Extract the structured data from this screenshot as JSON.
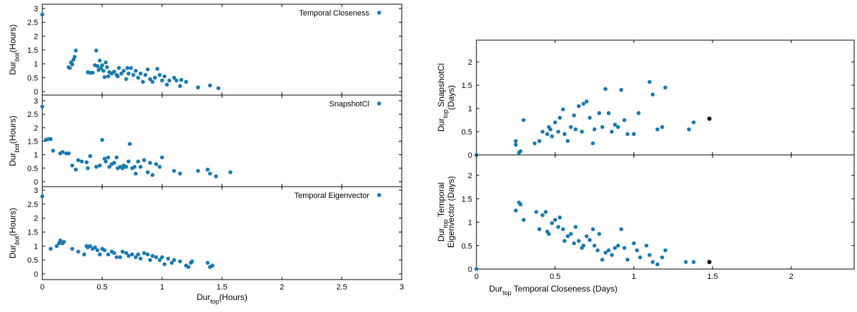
{
  "colors": {
    "series": "#1a7aaf",
    "highlight": "#000000",
    "axis": "#000000"
  },
  "left_figure": {
    "xlabel": {
      "main": "Dur",
      "sub": "top",
      "suffix": "(Hours)"
    },
    "x_ticks": [
      "0",
      "0.5",
      "1",
      "1.5",
      "2",
      "2.5",
      "3"
    ],
    "y_ticks": [
      "0",
      "0.5",
      "1",
      "1.5",
      "2",
      "2.5",
      "3"
    ]
  },
  "right_figure": {
    "xlabel": {
      "main": "Dur",
      "sub": "top",
      "suffix": " Temporal Closeness (Days)"
    },
    "x_ticks": [
      "0",
      "0.5",
      "1",
      "1.5",
      "2"
    ],
    "y_ticks": [
      "0",
      "0.5",
      "1",
      "1.5",
      "2"
    ]
  },
  "chart_data": [
    {
      "type": "scatter",
      "panel": "left-top",
      "legend": "Temporal Closeness",
      "legend_position": "top-right",
      "ylabel": {
        "main": "Dur",
        "sub": "bot",
        "suffix": "(Hours)"
      },
      "xlim": [
        0,
        3
      ],
      "ylim": [
        -0.1,
        3.1
      ],
      "points": [
        [
          0,
          2.78
        ],
        [
          0.22,
          0.88
        ],
        [
          0.23,
          0.85
        ],
        [
          0.24,
          1.05
        ],
        [
          0.25,
          0.98
        ],
        [
          0.26,
          1.15
        ],
        [
          0.27,
          1.25
        ],
        [
          0.28,
          1.48
        ],
        [
          0.38,
          0.7
        ],
        [
          0.4,
          0.68
        ],
        [
          0.42,
          0.68
        ],
        [
          0.44,
          0.95
        ],
        [
          0.45,
          1.48
        ],
        [
          0.46,
          0.92
        ],
        [
          0.47,
          0.78
        ],
        [
          0.48,
          1.12
        ],
        [
          0.49,
          0.85
        ],
        [
          0.5,
          0.95
        ],
        [
          0.51,
          0.75
        ],
        [
          0.52,
          0.52
        ],
        [
          0.53,
          1.05
        ],
        [
          0.54,
          0.88
        ],
        [
          0.55,
          0.55
        ],
        [
          0.56,
          0.7
        ],
        [
          0.58,
          0.65
        ],
        [
          0.6,
          0.72
        ],
        [
          0.62,
          0.6
        ],
        [
          0.63,
          0.55
        ],
        [
          0.64,
          0.85
        ],
        [
          0.66,
          0.65
        ],
        [
          0.68,
          0.75
        ],
        [
          0.7,
          0.45
        ],
        [
          0.71,
          0.85
        ],
        [
          0.72,
          0.65
        ],
        [
          0.74,
          0.85
        ],
        [
          0.76,
          0.6
        ],
        [
          0.78,
          0.75
        ],
        [
          0.8,
          0.5
        ],
        [
          0.82,
          0.65
        ],
        [
          0.84,
          0.35
        ],
        [
          0.86,
          0.6
        ],
        [
          0.88,
          0.8
        ],
        [
          0.9,
          0.45
        ],
        [
          0.92,
          0.35
        ],
        [
          0.94,
          0.5
        ],
        [
          0.96,
          0.82
        ],
        [
          0.98,
          0.6
        ],
        [
          1.0,
          0.4
        ],
        [
          1.02,
          0.55
        ],
        [
          1.04,
          0.25
        ],
        [
          1.06,
          0.4
        ],
        [
          1.1,
          0.5
        ],
        [
          1.12,
          0.4
        ],
        [
          1.15,
          0.2
        ],
        [
          1.16,
          0.42
        ],
        [
          1.2,
          0.35
        ],
        [
          1.3,
          0.15
        ],
        [
          1.4,
          0.22
        ],
        [
          1.47,
          0.12
        ]
      ]
    },
    {
      "type": "scatter",
      "panel": "left-middle",
      "legend": "SnapshotCl",
      "legend_position": "top-right",
      "ylabel": {
        "main": "Dur",
        "sub": "bot",
        "suffix": "(Hours)"
      },
      "xlim": [
        0,
        3
      ],
      "ylim": [
        -0.1,
        3.1
      ],
      "points": [
        [
          0,
          2.78
        ],
        [
          0.03,
          1.55
        ],
        [
          0.05,
          1.58
        ],
        [
          0.07,
          1.58
        ],
        [
          0.09,
          1.15
        ],
        [
          0.15,
          1.05
        ],
        [
          0.17,
          1.1
        ],
        [
          0.2,
          1.05
        ],
        [
          0.22,
          1.05
        ],
        [
          0.25,
          0.6
        ],
        [
          0.28,
          0.45
        ],
        [
          0.3,
          0.8
        ],
        [
          0.33,
          0.75
        ],
        [
          0.37,
          0.72
        ],
        [
          0.38,
          0.5
        ],
        [
          0.4,
          0.95
        ],
        [
          0.45,
          0.55
        ],
        [
          0.48,
          0.6
        ],
        [
          0.5,
          1.55
        ],
        [
          0.52,
          0.85
        ],
        [
          0.53,
          0.75
        ],
        [
          0.55,
          0.9
        ],
        [
          0.56,
          0.55
        ],
        [
          0.58,
          0.65
        ],
        [
          0.6,
          0.7
        ],
        [
          0.62,
          0.9
        ],
        [
          0.63,
          0.5
        ],
        [
          0.65,
          0.55
        ],
        [
          0.67,
          0.5
        ],
        [
          0.68,
          0.6
        ],
        [
          0.7,
          0.55
        ],
        [
          0.72,
          0.75
        ],
        [
          0.73,
          1.4
        ],
        [
          0.75,
          0.5
        ],
        [
          0.77,
          0.55
        ],
        [
          0.78,
          0.3
        ],
        [
          0.8,
          0.75
        ],
        [
          0.82,
          0.55
        ],
        [
          0.85,
          0.8
        ],
        [
          0.88,
          0.35
        ],
        [
          0.9,
          0.7
        ],
        [
          0.92,
          0.25
        ],
        [
          0.95,
          0.65
        ],
        [
          0.98,
          0.55
        ],
        [
          1.0,
          0.9
        ],
        [
          1.1,
          0.4
        ],
        [
          1.15,
          0.3
        ],
        [
          1.3,
          0.4
        ],
        [
          1.38,
          0.45
        ],
        [
          1.4,
          0.3
        ],
        [
          1.45,
          0.2
        ],
        [
          1.57,
          0.35
        ]
      ]
    },
    {
      "type": "scatter",
      "panel": "left-bottom",
      "legend": "Temporal Eigenvector",
      "legend_position": "top-right",
      "ylabel": {
        "main": "Dur",
        "sub": "bot",
        "suffix": "(Hours)"
      },
      "xlim": [
        0,
        3
      ],
      "ylim": [
        -0.1,
        3.1
      ],
      "points": [
        [
          0,
          2.78
        ],
        [
          0.07,
          0.9
        ],
        [
          0.12,
          1.0
        ],
        [
          0.14,
          1.1
        ],
        [
          0.15,
          1.2
        ],
        [
          0.17,
          1.1
        ],
        [
          0.18,
          1.15
        ],
        [
          0.25,
          0.9
        ],
        [
          0.3,
          0.8
        ],
        [
          0.35,
          0.7
        ],
        [
          0.37,
          1.0
        ],
        [
          0.38,
          0.95
        ],
        [
          0.4,
          1.0
        ],
        [
          0.42,
          0.9
        ],
        [
          0.44,
          0.95
        ],
        [
          0.46,
          0.85
        ],
        [
          0.48,
          0.7
        ],
        [
          0.5,
          0.9
        ],
        [
          0.52,
          0.85
        ],
        [
          0.55,
          0.7
        ],
        [
          0.58,
          0.8
        ],
        [
          0.6,
          0.75
        ],
        [
          0.62,
          0.6
        ],
        [
          0.65,
          0.6
        ],
        [
          0.67,
          0.8
        ],
        [
          0.7,
          0.75
        ],
        [
          0.72,
          0.65
        ],
        [
          0.75,
          0.7
        ],
        [
          0.78,
          0.6
        ],
        [
          0.8,
          0.7
        ],
        [
          0.82,
          0.55
        ],
        [
          0.85,
          0.75
        ],
        [
          0.88,
          0.7
        ],
        [
          0.9,
          0.5
        ],
        [
          0.92,
          0.65
        ],
        [
          0.95,
          0.6
        ],
        [
          0.98,
          0.5
        ],
        [
          1.0,
          0.6
        ],
        [
          1.02,
          0.35
        ],
        [
          1.05,
          0.55
        ],
        [
          1.08,
          0.4
        ],
        [
          1.1,
          0.5
        ],
        [
          1.15,
          0.45
        ],
        [
          1.2,
          0.3
        ],
        [
          1.22,
          0.25
        ],
        [
          1.24,
          0.4
        ],
        [
          1.25,
          0.45
        ],
        [
          1.38,
          0.4
        ],
        [
          1.4,
          0.25
        ],
        [
          1.42,
          0.3
        ]
      ]
    },
    {
      "type": "scatter",
      "panel": "right-top",
      "ylabel": {
        "main": "Dur",
        "sub": "top",
        "suffix": " SnapshotCl",
        "line2": "(Days)"
      },
      "xlim": [
        0,
        2.4
      ],
      "ylim": [
        0,
        2.4
      ],
      "points": [
        [
          0,
          0
        ],
        [
          0.25,
          0.22
        ],
        [
          0.25,
          0.3
        ],
        [
          0.27,
          0.05
        ],
        [
          0.28,
          0.08
        ],
        [
          0.3,
          0.75
        ],
        [
          0.37,
          0.25
        ],
        [
          0.4,
          0.3
        ],
        [
          0.42,
          0.5
        ],
        [
          0.45,
          0.45
        ],
        [
          0.46,
          0.6
        ],
        [
          0.47,
          0.55
        ],
        [
          0.48,
          0.4
        ],
        [
          0.5,
          0.7
        ],
        [
          0.52,
          0.5
        ],
        [
          0.53,
          0.8
        ],
        [
          0.55,
          0.98
        ],
        [
          0.56,
          0.45
        ],
        [
          0.58,
          0.3
        ],
        [
          0.6,
          0.6
        ],
        [
          0.62,
          0.85
        ],
        [
          0.63,
          0.55
        ],
        [
          0.65,
          1.05
        ],
        [
          0.67,
          0.5
        ],
        [
          0.68,
          1.1
        ],
        [
          0.7,
          1.15
        ],
        [
          0.72,
          0.8
        ],
        [
          0.74,
          0.25
        ],
        [
          0.75,
          0.55
        ],
        [
          0.78,
          0.9
        ],
        [
          0.8,
          0.6
        ],
        [
          0.82,
          1.42
        ],
        [
          0.84,
          0.9
        ],
        [
          0.86,
          0.5
        ],
        [
          0.88,
          0.65
        ],
        [
          0.9,
          0.6
        ],
        [
          0.92,
          1.4
        ],
        [
          0.94,
          0.75
        ],
        [
          0.96,
          0.45
        ],
        [
          1.0,
          0.45
        ],
        [
          1.03,
          0.9
        ],
        [
          1.1,
          1.57
        ],
        [
          1.12,
          1.3
        ],
        [
          1.15,
          0.55
        ],
        [
          1.18,
          0.6
        ],
        [
          1.2,
          1.45
        ],
        [
          1.35,
          0.55
        ],
        [
          1.38,
          0.7
        ]
      ],
      "highlight_point": [
        1.48,
        0.78
      ]
    },
    {
      "type": "scatter",
      "panel": "right-bottom",
      "ylabel": {
        "main": "Dur",
        "sub": "top",
        "suffix": " Temporal",
        "line2": "Eigenvector (Days)"
      },
      "xlim": [
        0,
        2.4
      ],
      "ylim": [
        0,
        2.4
      ],
      "points": [
        [
          0,
          0
        ],
        [
          0.25,
          1.25
        ],
        [
          0.27,
          1.42
        ],
        [
          0.28,
          1.38
        ],
        [
          0.3,
          1.05
        ],
        [
          0.38,
          1.22
        ],
        [
          0.4,
          0.85
        ],
        [
          0.42,
          1.15
        ],
        [
          0.44,
          1.22
        ],
        [
          0.45,
          0.8
        ],
        [
          0.46,
          0.75
        ],
        [
          0.48,
          0.98
        ],
        [
          0.5,
          1.05
        ],
        [
          0.52,
          0.9
        ],
        [
          0.53,
          1.1
        ],
        [
          0.55,
          0.85
        ],
        [
          0.56,
          0.6
        ],
        [
          0.58,
          0.7
        ],
        [
          0.6,
          0.75
        ],
        [
          0.62,
          0.55
        ],
        [
          0.63,
          0.9
        ],
        [
          0.65,
          0.6
        ],
        [
          0.67,
          0.45
        ],
        [
          0.68,
          0.5
        ],
        [
          0.7,
          0.7
        ],
        [
          0.72,
          0.62
        ],
        [
          0.74,
          0.85
        ],
        [
          0.75,
          0.5
        ],
        [
          0.77,
          0.4
        ],
        [
          0.78,
          0.75
        ],
        [
          0.8,
          0.2
        ],
        [
          0.82,
          0.35
        ],
        [
          0.84,
          0.4
        ],
        [
          0.86,
          0.3
        ],
        [
          0.88,
          0.45
        ],
        [
          0.9,
          0.5
        ],
        [
          0.92,
          0.85
        ],
        [
          0.94,
          0.45
        ],
        [
          0.96,
          0.2
        ],
        [
          1.0,
          0.55
        ],
        [
          1.02,
          0.4
        ],
        [
          1.04,
          0.25
        ],
        [
          1.08,
          0.5
        ],
        [
          1.1,
          0.3
        ],
        [
          1.12,
          0.15
        ],
        [
          1.15,
          0.1
        ],
        [
          1.18,
          0.25
        ],
        [
          1.2,
          0.4
        ],
        [
          1.33,
          0.15
        ],
        [
          1.38,
          0.15
        ]
      ],
      "highlight_point": [
        1.48,
        0.15
      ]
    }
  ]
}
